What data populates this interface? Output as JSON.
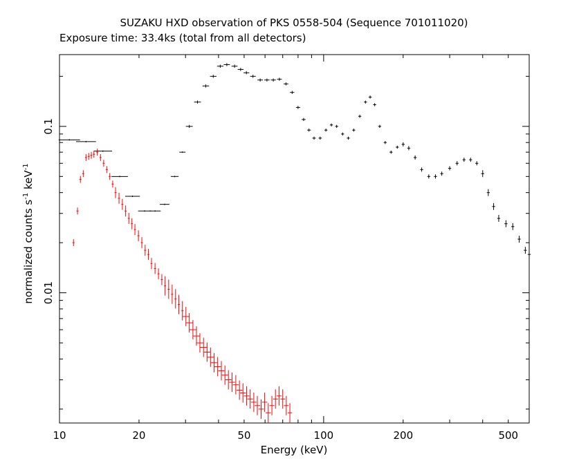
{
  "chart_data": {
    "type": "scatter",
    "title": "SUZAKU HXD observation of PKS 0558-504 (Sequence 701011020)",
    "subtitle": "Exposure time: 33.4ks (total from all detectors)",
    "xlabel": "Energy (keV)",
    "ylabel_main": "normalized counts s",
    "ylabel_exp1": "-1",
    "ylabel_mid": " keV",
    "ylabel_exp2": "-1",
    "x_scale": "log",
    "y_scale": "log",
    "xlim": [
      10,
      600
    ],
    "ylim": [
      0.00165,
      0.27
    ],
    "x_ticks": [
      {
        "value": 10,
        "label": "10"
      },
      {
        "value": 20,
        "label": "20"
      },
      {
        "value": 50,
        "label": "50"
      },
      {
        "value": 100,
        "label": "100"
      },
      {
        "value": 200,
        "label": "200"
      },
      {
        "value": 500,
        "label": "500"
      }
    ],
    "y_ticks": [
      {
        "value": 0.01,
        "label": "0.01"
      },
      {
        "value": 0.1,
        "label": "0.1"
      }
    ],
    "grid": false,
    "series": [
      {
        "color": "#000000",
        "points": [
          [
            10.9,
            0.083
          ],
          [
            12.6,
            0.081
          ],
          [
            14.6,
            0.071
          ],
          [
            16.9,
            0.05
          ],
          [
            18.9,
            0.038
          ],
          [
            21.0,
            0.031
          ],
          [
            23.0,
            0.031
          ],
          [
            25.0,
            0.034
          ],
          [
            27.3,
            0.05
          ],
          [
            29.2,
            0.07
          ],
          [
            31.0,
            0.1
          ],
          [
            33.3,
            0.14
          ],
          [
            35.8,
            0.175
          ],
          [
            38.2,
            0.2
          ],
          [
            40.6,
            0.23
          ],
          [
            43.0,
            0.235
          ],
          [
            46.0,
            0.23
          ],
          [
            48.5,
            0.22
          ],
          [
            51.0,
            0.21
          ],
          [
            54.0,
            0.2
          ],
          [
            57.5,
            0.19
          ],
          [
            61.0,
            0.19
          ],
          [
            64.5,
            0.19
          ],
          [
            68.0,
            0.192
          ],
          [
            72.0,
            0.18
          ],
          [
            76.0,
            0.16
          ],
          [
            80.0,
            0.13
          ],
          [
            84.0,
            0.11
          ],
          [
            88.0,
            0.095
          ],
          [
            92.0,
            0.085
          ],
          [
            97.0,
            0.085
          ],
          [
            102.0,
            0.095
          ],
          [
            107.0,
            0.102
          ],
          [
            112.0,
            0.1
          ],
          [
            118.0,
            0.09
          ],
          [
            124.0,
            0.085
          ],
          [
            130.0,
            0.095
          ],
          [
            137.0,
            0.115
          ],
          [
            144.0,
            0.14
          ],
          [
            150.0,
            0.15
          ],
          [
            156.0,
            0.135
          ],
          [
            163.0,
            0.1
          ],
          [
            171.0,
            0.08
          ],
          [
            180.0,
            0.07
          ],
          [
            190.0,
            0.075
          ],
          [
            200.0,
            0.078
          ],
          [
            210.0,
            0.074
          ],
          [
            222.0,
            0.065
          ],
          [
            235.0,
            0.055
          ],
          [
            250.0,
            0.05
          ],
          [
            265.0,
            0.05
          ],
          [
            280.0,
            0.052
          ],
          [
            300.0,
            0.056
          ],
          [
            320.0,
            0.06
          ],
          [
            340.0,
            0.063
          ],
          [
            360.0,
            0.063
          ],
          [
            380.0,
            0.06
          ],
          [
            400.0,
            0.052
          ],
          [
            420.0,
            0.04
          ],
          [
            440.0,
            0.033
          ],
          [
            460.0,
            0.028
          ],
          [
            490.0,
            0.026
          ],
          [
            520.0,
            0.025
          ],
          [
            550.0,
            0.021
          ],
          [
            580.0,
            0.018
          ],
          [
            600.0,
            0.017
          ]
        ]
      },
      {
        "color": "#ff0000",
        "points": [
          [
            11.3,
            0.02
          ],
          [
            11.7,
            0.031
          ],
          [
            12.0,
            0.048
          ],
          [
            12.3,
            0.052
          ],
          [
            12.6,
            0.065
          ],
          [
            12.9,
            0.066
          ],
          [
            13.2,
            0.067
          ],
          [
            13.5,
            0.068
          ],
          [
            13.9,
            0.07
          ],
          [
            14.3,
            0.065
          ],
          [
            14.7,
            0.06
          ],
          [
            15.1,
            0.055
          ],
          [
            15.5,
            0.05
          ],
          [
            15.9,
            0.045
          ],
          [
            16.3,
            0.04
          ],
          [
            16.8,
            0.037
          ],
          [
            17.3,
            0.034
          ],
          [
            17.8,
            0.031
          ],
          [
            18.3,
            0.028
          ],
          [
            18.8,
            0.026
          ],
          [
            19.3,
            0.024
          ],
          [
            19.9,
            0.022
          ],
          [
            20.5,
            0.02
          ],
          [
            21.1,
            0.018
          ],
          [
            21.7,
            0.017
          ],
          [
            22.3,
            0.015
          ],
          [
            23.0,
            0.014
          ],
          [
            23.7,
            0.013
          ],
          [
            24.4,
            0.012
          ],
          [
            25.1,
            0.011
          ],
          [
            25.9,
            0.0105
          ],
          [
            26.7,
            0.0098
          ],
          [
            27.5,
            0.0092
          ],
          [
            28.3,
            0.0085
          ],
          [
            29.2,
            0.0078
          ],
          [
            30.1,
            0.0072
          ],
          [
            31.0,
            0.0066
          ],
          [
            32.0,
            0.006
          ],
          [
            33.0,
            0.0055
          ],
          [
            34.0,
            0.005
          ],
          [
            35.1,
            0.0047
          ],
          [
            36.2,
            0.0044
          ],
          [
            37.3,
            0.0041
          ],
          [
            38.5,
            0.0038
          ],
          [
            39.7,
            0.0036
          ],
          [
            41.0,
            0.0034
          ],
          [
            42.3,
            0.0032
          ],
          [
            43.6,
            0.003
          ],
          [
            45.0,
            0.0029
          ],
          [
            46.5,
            0.0028
          ],
          [
            48.0,
            0.0026
          ],
          [
            49.5,
            0.0025
          ],
          [
            51.1,
            0.0024
          ],
          [
            52.7,
            0.0023
          ],
          [
            54.4,
            0.0022
          ],
          [
            56.1,
            0.0021
          ],
          [
            58.0,
            0.002
          ],
          [
            59.8,
            0.0022
          ],
          [
            61.7,
            0.0019
          ],
          [
            63.7,
            0.0021
          ],
          [
            65.7,
            0.0023
          ],
          [
            67.8,
            0.0024
          ],
          [
            70.0,
            0.0023
          ],
          [
            72.2,
            0.0021
          ],
          [
            74.5,
            0.0019
          ]
        ]
      }
    ]
  }
}
